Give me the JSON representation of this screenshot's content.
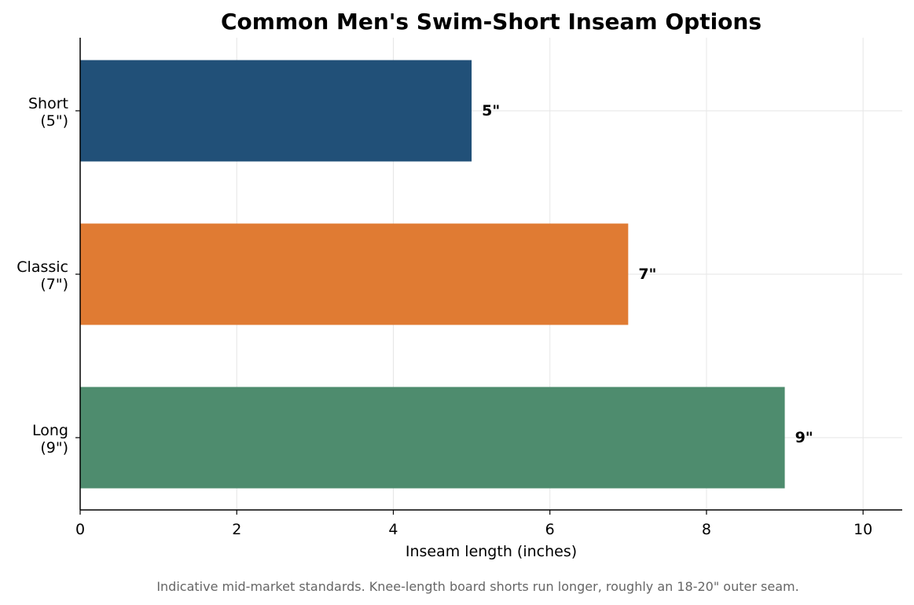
{
  "chart_data": {
    "type": "bar",
    "orientation": "horizontal",
    "title": "Common Men's Swim-Short Inseam Options",
    "xlabel": "Inseam length (inches)",
    "ylabel": "",
    "categories": [
      [
        "Short",
        "(5\")"
      ],
      [
        "Classic",
        "(7\")"
      ],
      [
        "Long",
        "(9\")"
      ]
    ],
    "values": [
      5,
      7,
      9
    ],
    "data_labels": [
      "5\"",
      "7\"",
      "9\""
    ],
    "colors": [
      "#215078",
      "#e07b33",
      "#4e8c6e"
    ],
    "xlim": [
      0,
      10.5
    ],
    "xticks": [
      0,
      2,
      4,
      6,
      8,
      10
    ],
    "xtick_labels": [
      "0",
      "2",
      "4",
      "6",
      "8",
      "10"
    ],
    "grid": true,
    "legend": "none"
  },
  "note": "Indicative mid-market standards. Knee-length board shorts run longer, roughly an 18-20\" outer seam."
}
